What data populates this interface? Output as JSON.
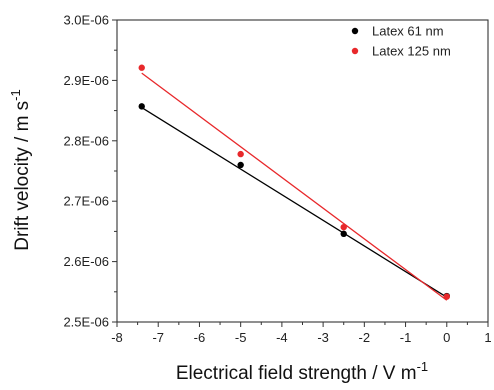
{
  "chart_data": {
    "type": "scatter",
    "xlabel": "Electrical field strength / V m",
    "xlabel_sup": "-1",
    "ylabel": "Drift velocity / m s",
    "ylabel_sup": "-1",
    "xlim": [
      -8,
      1
    ],
    "ylim": [
      2.5e-06,
      3e-06
    ],
    "x_ticks": [
      -8,
      -7,
      -6,
      -5,
      -4,
      -3,
      -2,
      -1,
      0,
      1
    ],
    "x_tick_labels": [
      "-8",
      "-7",
      "-6",
      "-5",
      "-4",
      "-3",
      "-2",
      "-1",
      "0",
      "1"
    ],
    "y_ticks": [
      2.5e-06,
      2.6e-06,
      2.7e-06,
      2.8e-06,
      2.9e-06,
      3e-06
    ],
    "y_tick_labels": [
      "2.5E-06",
      "2.6E-06",
      "2.7E-06",
      "2.8E-06",
      "2.9E-06",
      "3.0E-06"
    ],
    "grid": false,
    "legend_position": "top-right",
    "series": [
      {
        "name": "Latex 61 nm",
        "color": "#000000",
        "x": [
          -7.4,
          -5.0,
          -2.5,
          0.0
        ],
        "y": [
          2.857e-06,
          2.76e-06,
          2.646e-06,
          2.543e-06
        ],
        "fit": [
          [
            -7.4,
            2.855e-06
          ],
          [
            0.0,
            2.541e-06
          ]
        ]
      },
      {
        "name": "Latex 125 nm",
        "color": "#e8282b",
        "x": [
          -7.4,
          -5.0,
          -2.5,
          0.0
        ],
        "y": [
          2.921e-06,
          2.778e-06,
          2.657e-06,
          2.542e-06
        ],
        "fit": [
          [
            -7.4,
            2.912e-06
          ],
          [
            0.0,
            2.536e-06
          ]
        ]
      }
    ]
  }
}
